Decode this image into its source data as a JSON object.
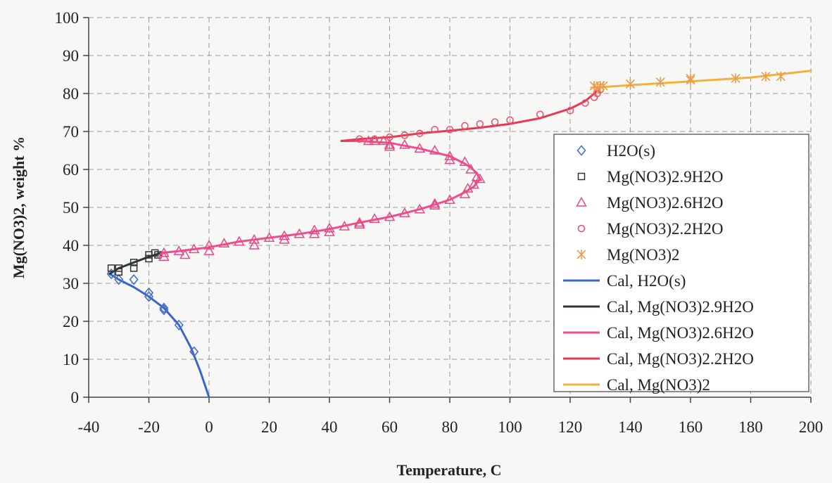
{
  "chart_data": {
    "type": "scatter",
    "xlabel": "Temperature, C",
    "ylabel": "Mg(NO3)2, weight %",
    "xlim": [
      -40,
      200
    ],
    "ylim": [
      0,
      100
    ],
    "x_ticks": [
      "-40",
      "-20",
      "0",
      "20",
      "40",
      "60",
      "80",
      "100",
      "120",
      "140",
      "160",
      "180",
      "200"
    ],
    "y_ticks": [
      "0",
      "10",
      "20",
      "30",
      "40",
      "50",
      "60",
      "70",
      "80",
      "90",
      "100"
    ],
    "grid": "dashed",
    "legend_position": "right",
    "series": [
      {
        "name": "H2O(s)",
        "kind": "marker",
        "marker": "diamond",
        "color": "#4a6fc4",
        "points": [
          [
            -32.5,
            32.5
          ],
          [
            -30,
            31
          ],
          [
            -25,
            31
          ],
          [
            -20,
            27.5
          ],
          [
            -20,
            26.5
          ],
          [
            -15,
            23.5
          ],
          [
            -15,
            23
          ],
          [
            -10,
            19
          ],
          [
            -5,
            12
          ]
        ]
      },
      {
        "name": "Mg(NO3)2.9H2O",
        "kind": "marker",
        "marker": "square",
        "color": "#333333",
        "points": [
          [
            -32.5,
            34
          ],
          [
            -30,
            34
          ],
          [
            -30,
            33
          ],
          [
            -25,
            35.5
          ],
          [
            -25,
            34
          ],
          [
            -20,
            37.5
          ],
          [
            -20,
            36.5
          ],
          [
            -18,
            38
          ],
          [
            -17,
            37.5
          ]
        ]
      },
      {
        "name": "Mg(NO3)2.6H2O",
        "kind": "marker",
        "marker": "triangle",
        "color": "#e84a86",
        "points": [
          [
            -15,
            38
          ],
          [
            -15,
            37
          ],
          [
            -10,
            38.5
          ],
          [
            -8,
            37.5
          ],
          [
            -5,
            39
          ],
          [
            0,
            40
          ],
          [
            0,
            38.5
          ],
          [
            5,
            40.5
          ],
          [
            10,
            41
          ],
          [
            15,
            41.5
          ],
          [
            15,
            40
          ],
          [
            20,
            42
          ],
          [
            25,
            42.5
          ],
          [
            25,
            41.5
          ],
          [
            30,
            43
          ],
          [
            35,
            44
          ],
          [
            35,
            43
          ],
          [
            40,
            44.5
          ],
          [
            40,
            43.5
          ],
          [
            45,
            45
          ],
          [
            50,
            46
          ],
          [
            50,
            45.5
          ],
          [
            55,
            47
          ],
          [
            60,
            47.5
          ],
          [
            65,
            48.5
          ],
          [
            70,
            49.5
          ],
          [
            75,
            51
          ],
          [
            75,
            50.5
          ],
          [
            80,
            52
          ],
          [
            85,
            53.5
          ],
          [
            86,
            55
          ],
          [
            88,
            56
          ],
          [
            90,
            57.5
          ],
          [
            89,
            58
          ],
          [
            87,
            60
          ],
          [
            85,
            62
          ],
          [
            80,
            63.5
          ],
          [
            80,
            62.5
          ],
          [
            75,
            65
          ],
          [
            70,
            65.5
          ],
          [
            65,
            66.5
          ],
          [
            60,
            66.5
          ],
          [
            58,
            67.5
          ],
          [
            55,
            67.5
          ],
          [
            53,
            67.5
          ],
          [
            60,
            66
          ]
        ]
      },
      {
        "name": "Mg(NO3)2.2H2O",
        "kind": "marker",
        "marker": "circle",
        "color": "#e8506a",
        "points": [
          [
            50,
            68
          ],
          [
            55,
            68
          ],
          [
            60,
            68.5
          ],
          [
            65,
            69
          ],
          [
            70,
            69.5
          ],
          [
            75,
            70.5
          ],
          [
            80,
            70.5
          ],
          [
            85,
            71.5
          ],
          [
            90,
            72
          ],
          [
            95,
            72.5
          ],
          [
            100,
            73
          ],
          [
            110,
            74.5
          ],
          [
            120,
            75.5
          ],
          [
            125,
            77.5
          ],
          [
            128,
            79
          ],
          [
            129,
            80
          ],
          [
            130,
            81
          ]
        ]
      },
      {
        "name": "Mg(NO3)2",
        "kind": "marker",
        "marker": "asterisk",
        "color": "#e8a050",
        "points": [
          [
            128,
            82
          ],
          [
            129,
            81.5
          ],
          [
            130,
            82
          ],
          [
            131,
            82
          ],
          [
            140,
            82.5
          ],
          [
            150,
            83
          ],
          [
            160,
            83.5
          ],
          [
            160,
            84
          ],
          [
            175,
            84
          ],
          [
            185,
            84.5
          ],
          [
            190,
            84.5
          ]
        ]
      },
      {
        "name": "Cal, H2O(s)",
        "kind": "line",
        "color": "#3a66c8",
        "points": [
          [
            -33,
            32.5
          ],
          [
            -30,
            31
          ],
          [
            -25,
            29
          ],
          [
            -20,
            26.5
          ],
          [
            -15,
            23.5
          ],
          [
            -10,
            19
          ],
          [
            -6,
            13
          ],
          [
            -3,
            7
          ],
          [
            0,
            0
          ]
        ]
      },
      {
        "name": "Cal, Mg(NO3)2.9H2O",
        "kind": "line",
        "color": "#2b3a33",
        "points": [
          [
            -33,
            32.5
          ],
          [
            -30,
            34
          ],
          [
            -25,
            35.5
          ],
          [
            -20,
            37
          ],
          [
            -16,
            38
          ]
        ]
      },
      {
        "name": "Cal, Mg(NO3)2.6H2O",
        "kind": "line",
        "color": "#ef4d8c",
        "points": [
          [
            -16,
            38
          ],
          [
            -10,
            38.5
          ],
          [
            0,
            39.5
          ],
          [
            10,
            41
          ],
          [
            20,
            42
          ],
          [
            30,
            43
          ],
          [
            40,
            44.3
          ],
          [
            50,
            46
          ],
          [
            60,
            47.5
          ],
          [
            70,
            49.5
          ],
          [
            80,
            52
          ],
          [
            85,
            54
          ],
          [
            88,
            55.5
          ],
          [
            90,
            57.5
          ],
          [
            89,
            59
          ],
          [
            87,
            60.5
          ],
          [
            85,
            61.5
          ],
          [
            80,
            63.5
          ],
          [
            70,
            65.5
          ],
          [
            60,
            67
          ],
          [
            50,
            67.5
          ],
          [
            44,
            67.5
          ]
        ]
      },
      {
        "name": "Cal, Mg(NO3)2.2H2O",
        "kind": "line",
        "color": "#e33b55",
        "points": [
          [
            44,
            67.5
          ],
          [
            50,
            68
          ],
          [
            60,
            68.5
          ],
          [
            70,
            69.5
          ],
          [
            80,
            70.2
          ],
          [
            90,
            71
          ],
          [
            100,
            72
          ],
          [
            110,
            73.5
          ],
          [
            120,
            76
          ],
          [
            125,
            78
          ],
          [
            128,
            80
          ],
          [
            130,
            81.5
          ]
        ]
      },
      {
        "name": "Cal, Mg(NO3)2",
        "kind": "line",
        "color": "#f0b23c",
        "points": [
          [
            127,
            81.5
          ],
          [
            140,
            82.2
          ],
          [
            160,
            83.2
          ],
          [
            180,
            84.2
          ],
          [
            200,
            86
          ]
        ]
      }
    ]
  }
}
